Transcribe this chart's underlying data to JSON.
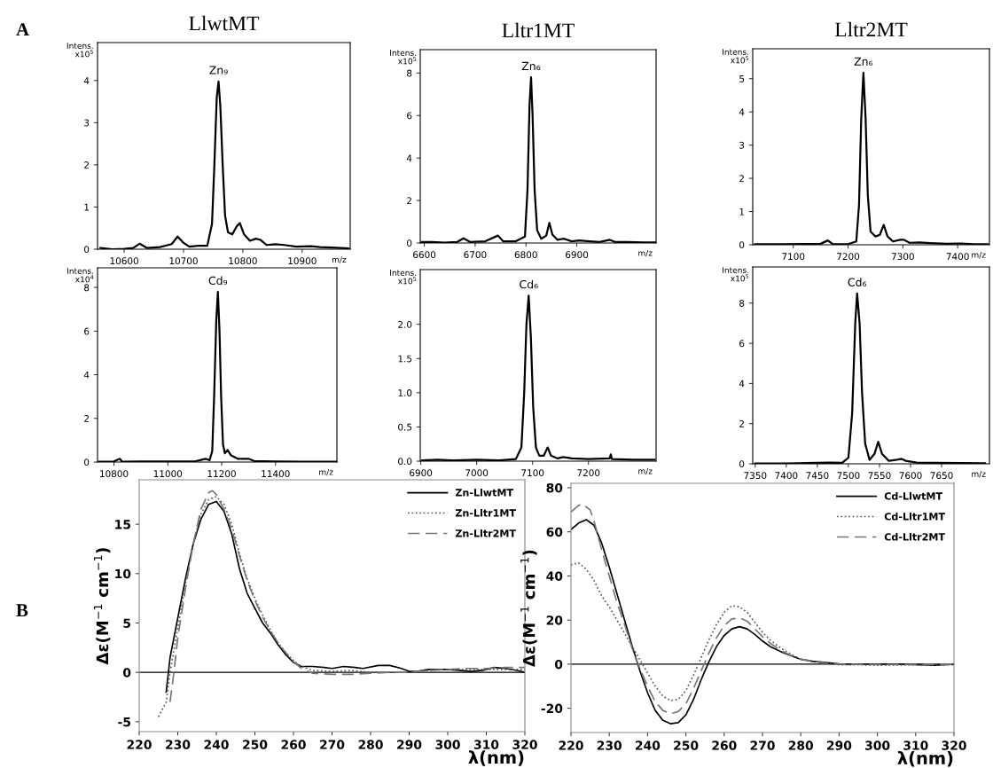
{
  "chart_data": [
    {
      "type": "line",
      "title": "LlwtMT",
      "ylabel": "Intens.\nx10$^{5}$",
      "xlabel": "m/z",
      "annotations": [
        "A",
        {
          "text": "Zn₉",
          "x": 10759,
          "y": 3.98
        }
      ],
      "xlim": [
        10555,
        10981
      ],
      "ylim": [
        0,
        4.9
      ],
      "xticks": [
        10600,
        10700,
        10800,
        10900
      ],
      "yticks": [
        0,
        1,
        2,
        3,
        4
      ],
      "series": [
        {
          "color": "#000000",
          "x": [
            10560,
            10580,
            10600,
            10615,
            10626,
            10638,
            10660,
            10680,
            10690,
            10700,
            10710,
            10725,
            10740,
            10748,
            10752,
            10756,
            10759,
            10762,
            10766,
            10770,
            10775,
            10782,
            10790,
            10795,
            10802,
            10812,
            10822,
            10830,
            10840,
            10855,
            10870,
            10890,
            10915,
            10930,
            10950,
            10978
          ],
          "values": [
            0.03,
            0.0,
            0.01,
            0.03,
            0.13,
            0.03,
            0.05,
            0.12,
            0.3,
            0.15,
            0.06,
            0.08,
            0.08,
            0.6,
            2.0,
            3.6,
            3.98,
            3.4,
            2.0,
            0.8,
            0.4,
            0.35,
            0.55,
            0.62,
            0.35,
            0.2,
            0.25,
            0.22,
            0.1,
            0.12,
            0.1,
            0.06,
            0.07,
            0.05,
            0.04,
            0.02
          ]
        }
      ]
    },
    {
      "type": "line",
      "title": "Lltr1MT",
      "ylabel": "Intens.\nx10$^{5}$",
      "xlabel": "m/z",
      "annotations": [
        {
          "text": "Zn₆",
          "x": 6810,
          "y": 7.8
        }
      ],
      "xlim": [
        6592,
        7056
      ],
      "ylim": [
        0,
        9.1
      ],
      "xticks": [
        6600,
        6700,
        6800,
        6900
      ],
      "yticks": [
        0,
        2,
        4,
        6,
        8
      ],
      "series": [
        {
          "color": "#000000",
          "x": [
            6595,
            6615,
            6640,
            6665,
            6677,
            6690,
            6720,
            6745,
            6755,
            6780,
            6798,
            6803,
            6807,
            6810,
            6813,
            6817,
            6822,
            6830,
            6840,
            6846,
            6852,
            6862,
            6875,
            6890,
            6905,
            6925,
            6945,
            6965,
            6975,
            7000,
            7030,
            7054
          ],
          "values": [
            0.05,
            0.05,
            0.02,
            0.05,
            0.22,
            0.05,
            0.08,
            0.35,
            0.08,
            0.08,
            0.3,
            2.5,
            6.5,
            7.8,
            6.0,
            2.5,
            0.6,
            0.2,
            0.35,
            0.95,
            0.4,
            0.15,
            0.2,
            0.08,
            0.12,
            0.08,
            0.05,
            0.15,
            0.05,
            0.05,
            0.03,
            0.03
          ]
        }
      ]
    },
    {
      "type": "line",
      "title": "Lltr2MT",
      "ylabel": "Intens.\nx10$^{5}$",
      "xlabel": "m/z",
      "annotations": [
        {
          "text": "Zn₆",
          "x": 7228,
          "y": 5.18
        }
      ],
      "xlim": [
        7026,
        7458
      ],
      "ylim": [
        0,
        5.9
      ],
      "xticks": [
        7100,
        7200,
        7300,
        7400
      ],
      "yticks": [
        0,
        1,
        2,
        3,
        4,
        5
      ],
      "series": [
        {
          "color": "#000000",
          "x": [
            7030,
            7080,
            7150,
            7163,
            7172,
            7200,
            7215,
            7220,
            7224,
            7228,
            7232,
            7236,
            7241,
            7250,
            7258,
            7265,
            7272,
            7282,
            7295,
            7302,
            7312,
            7330,
            7350,
            7380,
            7405,
            7430,
            7455
          ],
          "values": [
            0.02,
            0.02,
            0.03,
            0.13,
            0.02,
            0.02,
            0.1,
            1.2,
            3.8,
            5.18,
            3.8,
            1.5,
            0.4,
            0.25,
            0.3,
            0.6,
            0.25,
            0.1,
            0.15,
            0.15,
            0.06,
            0.07,
            0.05,
            0.03,
            0.04,
            0.02,
            0.02
          ]
        }
      ]
    },
    {
      "type": "line",
      "ylabel": "Intens.\nx10$^{4}$",
      "xlabel": "m/z",
      "annotations": [
        {
          "text": "Cd₉",
          "x": 11186,
          "y": 7.8
        }
      ],
      "xlim": [
        10739,
        11628
      ],
      "ylim": [
        0,
        8.9
      ],
      "xticks": [
        10800,
        11000,
        11200,
        11400
      ],
      "yticks": [
        0,
        2,
        4,
        6,
        8
      ],
      "series": [
        {
          "color": "#000000",
          "x": [
            10745,
            10800,
            10822,
            10830,
            10900,
            11000,
            11100,
            11140,
            11155,
            11165,
            11172,
            11180,
            11186,
            11192,
            11198,
            11205,
            11212,
            11222,
            11235,
            11260,
            11300,
            11320,
            11400,
            11500,
            11600,
            11625
          ],
          "values": [
            0.02,
            0.03,
            0.15,
            0.02,
            0.03,
            0.03,
            0.03,
            0.15,
            0.08,
            0.5,
            3,
            6.5,
            7.8,
            6,
            3,
            0.8,
            0.4,
            0.55,
            0.3,
            0.15,
            0.15,
            0.05,
            0.03,
            0.02,
            0.02,
            0.02
          ]
        }
      ]
    },
    {
      "type": "line",
      "ylabel": "Intens.\nx10$^{5}$",
      "xlabel": "m/z",
      "annotations": [
        {
          "text": "Cd₆",
          "x": 7093,
          "y": 2.42
        }
      ],
      "xlim": [
        6899,
        7321
      ],
      "ylim": [
        0,
        2.8
      ],
      "xticks": [
        6900,
        7000,
        7100,
        7200
      ],
      "yticks": [
        {
          "value": 0,
          "label": "0.0"
        },
        0.5,
        {
          "value": 1,
          "label": "1.0"
        },
        1.5,
        {
          "value": 2,
          "label": "2.0"
        }
      ],
      "series": [
        {
          "color": "#000000",
          "x": [
            6902,
            6930,
            6960,
            7000,
            7040,
            7070,
            7080,
            7085,
            7089,
            7093,
            7097,
            7101,
            7106,
            7112,
            7120,
            7127,
            7133,
            7145,
            7155,
            7170,
            7200,
            7238,
            7240,
            7242,
            7280,
            7318
          ],
          "values": [
            0.01,
            0.02,
            0.01,
            0.02,
            0.01,
            0.03,
            0.2,
            1.0,
            2.0,
            2.42,
            1.8,
            0.8,
            0.2,
            0.08,
            0.08,
            0.2,
            0.08,
            0.04,
            0.06,
            0.04,
            0.03,
            0.04,
            0.1,
            0.03,
            0.02,
            0.02
          ]
        }
      ]
    },
    {
      "type": "line",
      "ylabel": "Intens.\nx10$^{5}$",
      "xlabel": "m/z",
      "annotations": [
        {
          "text": "Cd₆",
          "x": 7514,
          "y": 8.48
        }
      ],
      "xlim": [
        7346,
        7727
      ],
      "ylim": [
        0,
        9.8
      ],
      "xticks": [
        7350,
        7400,
        7450,
        7500,
        7550,
        7600,
        7650
      ],
      "yticks": [
        0,
        2,
        4,
        6,
        8
      ],
      "series": [
        {
          "color": "#000000",
          "x": [
            7350,
            7400,
            7450,
            7470,
            7490,
            7500,
            7506,
            7511,
            7514,
            7518,
            7522,
            7527,
            7534,
            7542,
            7548,
            7554,
            7565,
            7578,
            7585,
            7592,
            7610,
            7640,
            7680,
            7720
          ],
          "values": [
            0.02,
            0.02,
            0.05,
            0.06,
            0.05,
            0.3,
            2.5,
            7,
            8.48,
            7,
            3.5,
            1,
            0.2,
            0.5,
            1.1,
            0.5,
            0.15,
            0.2,
            0.25,
            0.15,
            0.06,
            0.05,
            0.04,
            0.03
          ]
        }
      ]
    },
    {
      "type": "line",
      "ylabel": "Δε(M$^{−1}$ cm$^{−1}$)",
      "xlabel": "λ(nm)",
      "annotations": [
        "B"
      ],
      "legend": "top right",
      "xlim": [
        220,
        320
      ],
      "ylim": [
        -6,
        19.5
      ],
      "xticks": [
        220,
        230,
        240,
        250,
        260,
        270,
        280,
        290,
        300,
        310,
        320
      ],
      "yticks": [
        -5,
        0,
        5,
        10,
        15
      ],
      "ref_lines": [
        {
          "axis": "y",
          "value": 0,
          "color": "#000000"
        }
      ],
      "series": [
        {
          "name": "Zn-LlwtMT",
          "color": "#000000",
          "line_style": "solid",
          "x": [
            227,
            228,
            230,
            232,
            234,
            236,
            238,
            240,
            242,
            244,
            246,
            248,
            250,
            252,
            254,
            256,
            258,
            260,
            262,
            265,
            268,
            270,
            273,
            276,
            278,
            282,
            285,
            288,
            290,
            292,
            295,
            300,
            303,
            306,
            309,
            312,
            315,
            318,
            320
          ],
          "values": [
            -2,
            1.5,
            5.5,
            9.5,
            13,
            15.5,
            17,
            17.3,
            16.3,
            14,
            10.5,
            8,
            6.5,
            5,
            4,
            2.8,
            1.8,
            1,
            0.6,
            0.6,
            0.5,
            0.4,
            0.6,
            0.5,
            0.4,
            0.7,
            0.7,
            0.4,
            0.1,
            0.1,
            0.3,
            0.3,
            0.2,
            0.1,
            0.2,
            0.5,
            0.4,
            0.2,
            0
          ]
        },
        {
          "name": "Zn-Lltr1MT",
          "color": "#555555",
          "line_style": "dotted",
          "x": [
            225,
            227,
            228,
            230,
            232,
            234,
            236,
            238,
            240,
            242,
            244,
            246,
            248,
            250,
            252,
            254,
            256,
            258,
            260,
            262,
            265,
            270,
            275,
            280,
            285,
            290,
            295,
            300,
            305,
            310,
            315,
            320
          ],
          "values": [
            -4.5,
            -3,
            0,
            4.5,
            9,
            13,
            16,
            17.5,
            17.8,
            17,
            15,
            12,
            9.5,
            7.5,
            5.8,
            4.3,
            3,
            2,
            1.2,
            0.6,
            0.2,
            0.1,
            0.2,
            0,
            0,
            0,
            0.2,
            0.3,
            0.3,
            0.3,
            0.3,
            0.3
          ]
        },
        {
          "name": "Zn-Lltr2MT",
          "color": "#777777",
          "line_style": "dashed",
          "x": [
            228,
            229,
            230,
            232,
            234,
            236,
            238,
            239,
            240,
            242,
            244,
            246,
            248,
            250,
            252,
            254,
            256,
            258,
            260,
            262,
            265,
            270,
            275,
            280,
            285,
            290,
            295,
            300,
            305,
            310,
            315,
            320
          ],
          "values": [
            -3,
            0,
            3.5,
            8.5,
            13,
            16.5,
            18.2,
            18.4,
            18,
            16.5,
            14.5,
            11.8,
            9.3,
            7.3,
            5.6,
            4.2,
            3,
            2,
            1.1,
            0.4,
            -0.1,
            -0.2,
            -0.2,
            -0.1,
            0,
            0,
            0.2,
            0.3,
            0.4,
            0.4,
            0.5,
            0.5
          ]
        }
      ]
    },
    {
      "type": "line",
      "ylabel": "Δε(M$^{−1}$ cm$^{−1}$)",
      "xlabel": "λ(nm)",
      "legend": "top right",
      "xlim": [
        220,
        320
      ],
      "ylim": [
        -31,
        82
      ],
      "xticks": [
        220,
        230,
        240,
        250,
        260,
        270,
        280,
        290,
        300,
        310,
        320
      ],
      "yticks": [
        -20,
        0,
        20,
        40,
        60,
        80
      ],
      "ref_lines": [
        {
          "axis": "y",
          "value": 0,
          "color": "#000000"
        }
      ],
      "series": [
        {
          "name": "Cd-LlwtMT",
          "color": "#000000",
          "line_style": "solid",
          "x": [
            220,
            222,
            224,
            226,
            228,
            230,
            232,
            234,
            236,
            238,
            240,
            242,
            244,
            246,
            248,
            250,
            252,
            254,
            256,
            258,
            260,
            262,
            264,
            266,
            268,
            270,
            272,
            275,
            278,
            280,
            283,
            286,
            290,
            295,
            300,
            305,
            310,
            315,
            320
          ],
          "values": [
            61,
            64,
            65.5,
            63,
            55,
            44,
            32,
            20,
            8,
            -3,
            -13,
            -21,
            -25.5,
            -27,
            -26.5,
            -23,
            -16,
            -7,
            1,
            8,
            13,
            16,
            17,
            16,
            13.5,
            10.5,
            8,
            5.5,
            3.5,
            2.2,
            1.3,
            0.8,
            0.1,
            0,
            0,
            0,
            -0.2,
            -0.5,
            0
          ]
        },
        {
          "name": "Cd-Lltr1MT",
          "color": "#555555",
          "line_style": "dotted",
          "x": [
            220,
            222,
            224,
            226,
            228,
            230,
            232,
            234,
            236,
            238,
            240,
            242,
            244,
            246,
            248,
            250,
            252,
            254,
            256,
            258,
            260,
            262,
            264,
            266,
            268,
            270,
            272,
            275,
            278,
            280,
            285,
            290,
            295,
            300,
            310,
            320
          ],
          "values": [
            45,
            46,
            43,
            38,
            31,
            26,
            20,
            14,
            8,
            2,
            -4,
            -10,
            -14.5,
            -16.5,
            -16,
            -12,
            -5,
            3,
            11,
            18,
            23.5,
            26.5,
            26,
            23.5,
            19,
            14.5,
            11,
            7,
            4,
            2.2,
            0.5,
            -0.3,
            -0.3,
            -0.5,
            -0.3,
            -0.3
          ]
        },
        {
          "name": "Cd-Lltr2MT",
          "color": "#777777",
          "line_style": "dashed",
          "x": [
            220,
            222,
            223,
            225,
            226,
            228,
            230,
            232,
            234,
            236,
            238,
            240,
            242,
            244,
            246,
            248,
            250,
            252,
            254,
            256,
            258,
            260,
            262,
            264,
            266,
            268,
            270,
            272,
            275,
            278,
            280,
            285,
            290,
            300,
            310,
            320
          ],
          "values": [
            69,
            72,
            72.5,
            70,
            65,
            52,
            40,
            28,
            18,
            7,
            -2,
            -10,
            -17,
            -21,
            -22.5,
            -21.5,
            -18,
            -11,
            -3,
            5,
            12,
            17.5,
            20.5,
            21,
            19.5,
            16,
            12.5,
            9.5,
            6,
            3.5,
            2.2,
            0.8,
            0,
            -0.2,
            -0.2,
            0
          ]
        }
      ]
    }
  ]
}
